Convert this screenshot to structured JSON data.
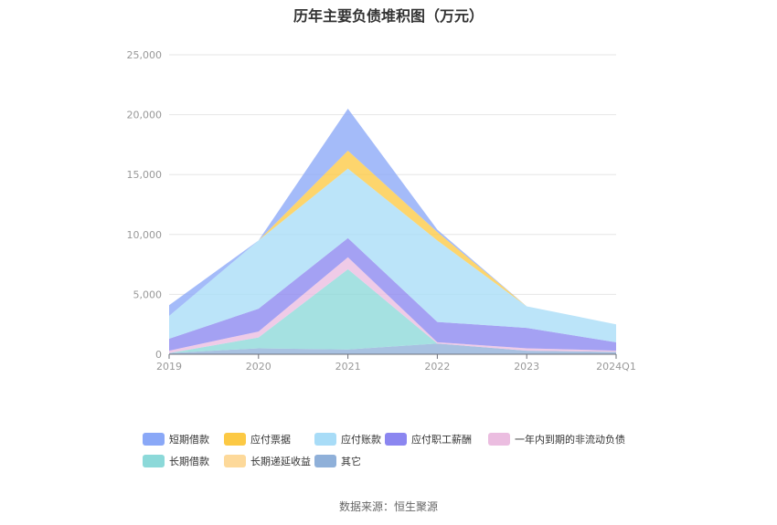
{
  "chart_data": {
    "type": "area",
    "title": "历年主要负债堆积图（万元）",
    "categories": [
      "2019",
      "2020",
      "2021",
      "2022",
      "2023",
      "2024Q1"
    ],
    "ylim": [
      0,
      25000
    ],
    "yticks": [
      "0",
      "5,000",
      "10,000",
      "15,000",
      "20,000",
      "25,000"
    ],
    "stacked": true,
    "grid": true,
    "legend_position": "bottom",
    "series": [
      {
        "name": "其它",
        "color": "#8fb0d9",
        "values": [
          100,
          500,
          400,
          900,
          300,
          200
        ]
      },
      {
        "name": "长期递延收益",
        "color": "#fdd99a",
        "values": [
          0,
          0,
          0,
          0,
          0,
          0
        ]
      },
      {
        "name": "长期借款",
        "color": "#8cd9d9",
        "values": [
          0,
          900,
          6700,
          0,
          0,
          0
        ]
      },
      {
        "name": "一年内到期的非流动负债",
        "color": "#ebbde0",
        "values": [
          200,
          500,
          1000,
          100,
          200,
          100
        ]
      },
      {
        "name": "应付职工薪酬",
        "color": "#8b86f0",
        "values": [
          1000,
          1900,
          1600,
          1700,
          1700,
          700
        ]
      },
      {
        "name": "应付账款",
        "color": "#a8dcf7",
        "values": [
          1900,
          5700,
          5800,
          6800,
          1800,
          1500
        ]
      },
      {
        "name": "应付票据",
        "color": "#fcc944",
        "values": [
          0,
          0,
          1500,
          700,
          0,
          0
        ]
      },
      {
        "name": "短期借款",
        "color": "#8aa8f7",
        "values": [
          900,
          0,
          3500,
          200,
          0,
          0
        ]
      }
    ]
  },
  "legend": [
    {
      "name": "短期借款",
      "color": "#8aa8f7"
    },
    {
      "name": "应付票据",
      "color": "#fcc944"
    },
    {
      "name": "应付账款",
      "color": "#a8dcf7"
    },
    {
      "name": "应付职工薪酬",
      "color": "#8b86f0"
    },
    {
      "name": "一年内到期的非流动负债",
      "color": "#ebbde0"
    },
    {
      "name": "长期借款",
      "color": "#8cd9d9"
    },
    {
      "name": "长期递延收益",
      "color": "#fdd99a"
    },
    {
      "name": "其它",
      "color": "#8fb0d9"
    }
  ],
  "source": "数据来源：恒生聚源"
}
